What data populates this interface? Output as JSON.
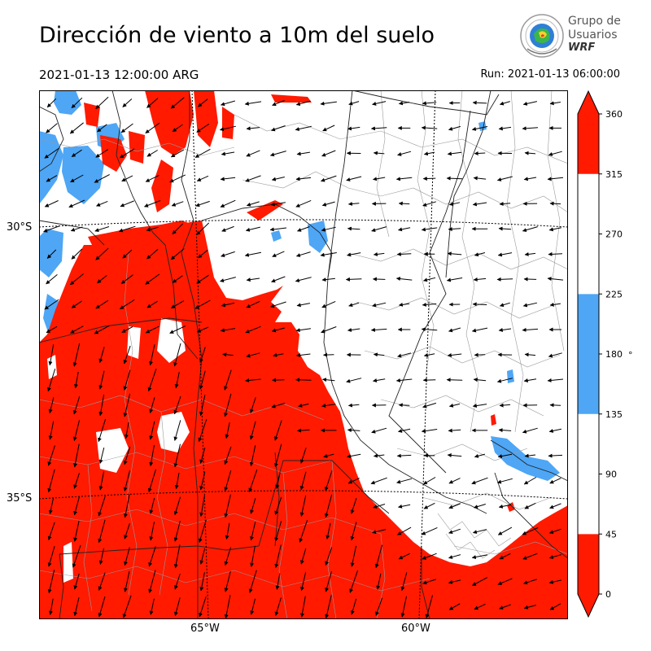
{
  "header": {
    "title": "Dirección de viento a 10m del suelo",
    "valid_time": "2021-01-13 12:00:00 ARG",
    "run_time": "Run: 2021-01-13 06:00:00"
  },
  "logo": {
    "line1": "Grupo de",
    "line2": "Usuarios",
    "line3": "WRF"
  },
  "map": {
    "lat_labels": [
      "30°S",
      "35°S"
    ],
    "lon_labels": [
      "65°W",
      "60°W"
    ],
    "colors": {
      "red": "#ff1a00",
      "blue": "#4ea6f5",
      "white": "#ffffff",
      "borders": "#222222",
      "subdivisions": "#9a9a9a"
    }
  },
  "colorbar": {
    "unit": "°",
    "ticks": [
      "0",
      "45",
      "90",
      "135",
      "180",
      "225",
      "270",
      "315",
      "360"
    ],
    "bins": [
      {
        "from": 0,
        "to": 45,
        "color": "#ff1a00"
      },
      {
        "from": 45,
        "to": 135,
        "color": "#ffffff"
      },
      {
        "from": 135,
        "to": 225,
        "color": "#4ea6f5"
      },
      {
        "from": 225,
        "to": 315,
        "color": "#ffffff"
      },
      {
        "from": 315,
        "to": 360,
        "color": "#ff1a00"
      }
    ]
  }
}
